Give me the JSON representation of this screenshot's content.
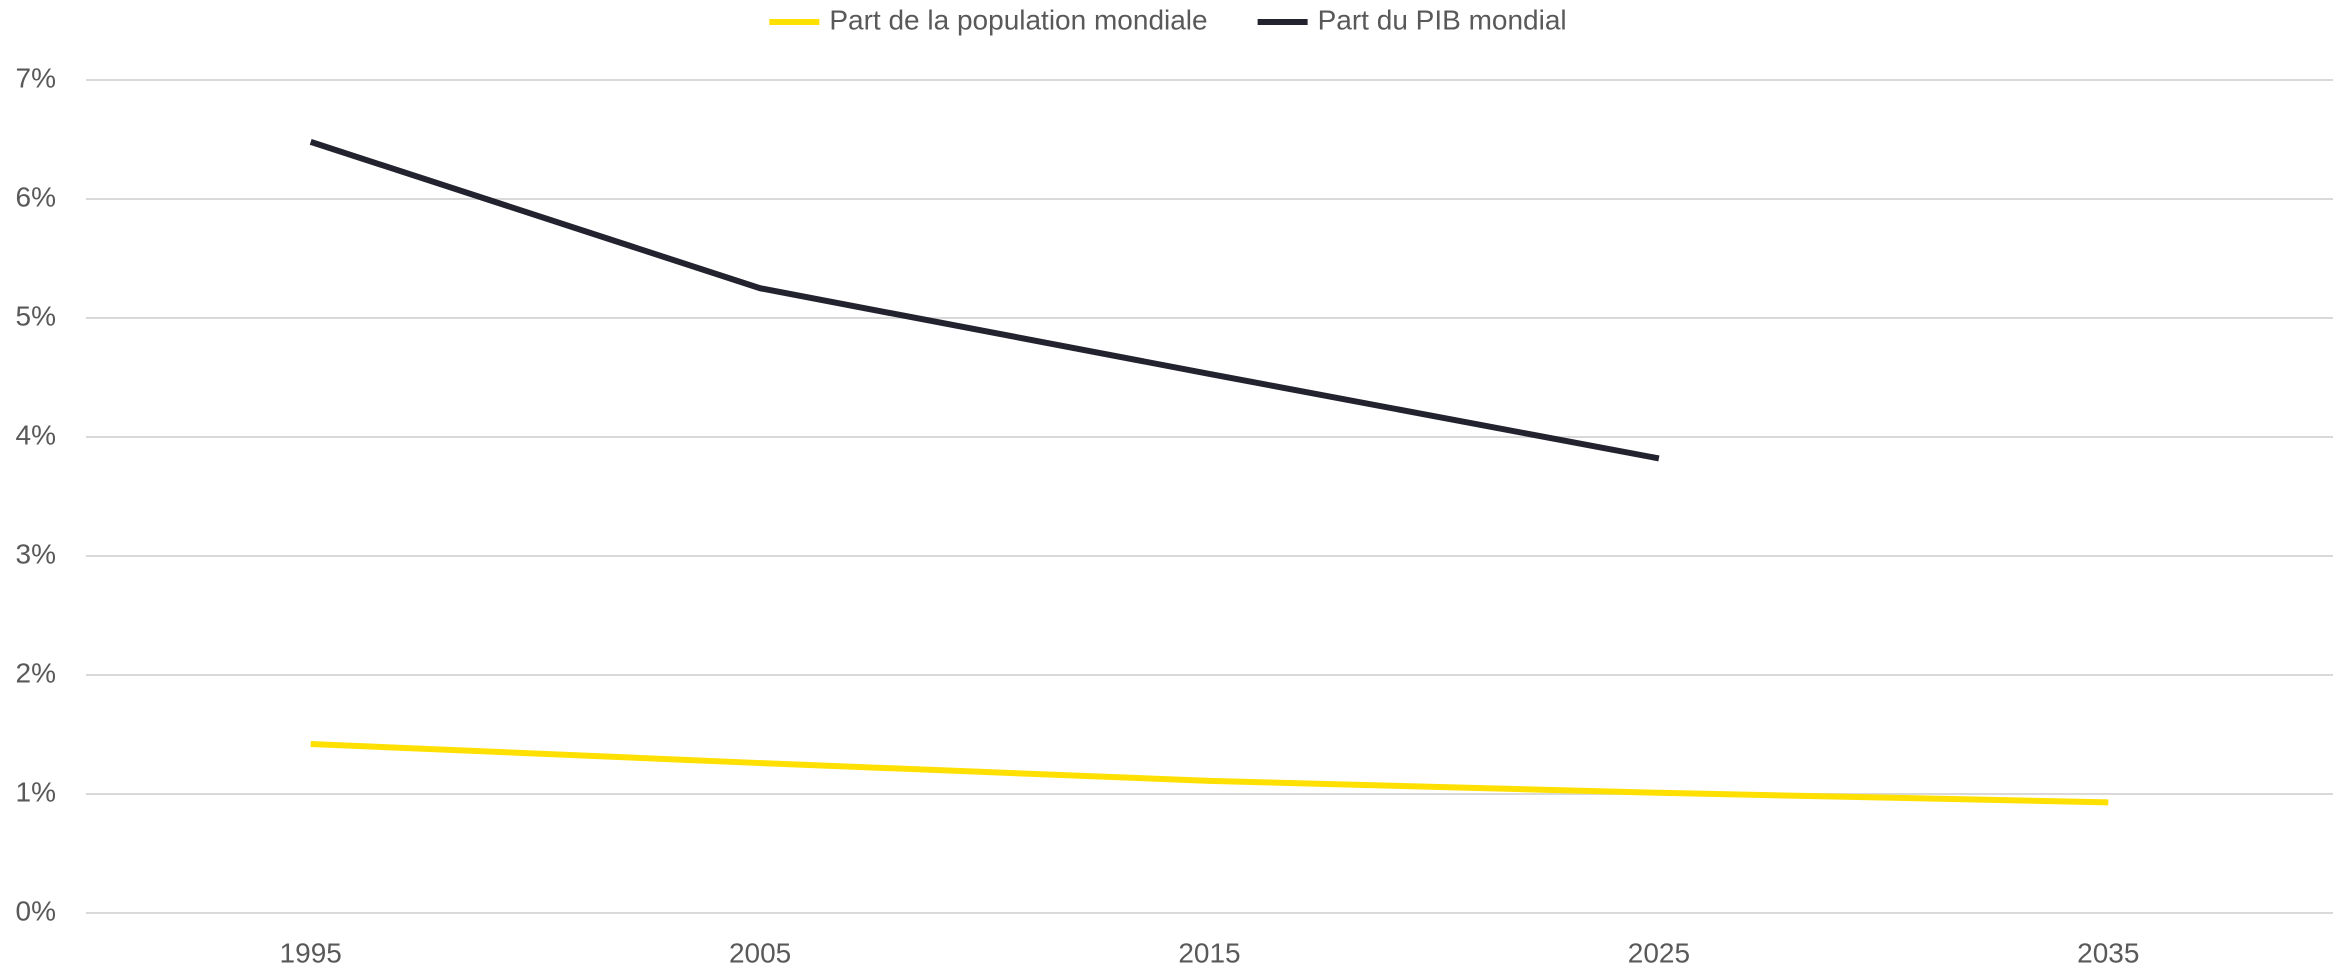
{
  "chart_data": {
    "type": "line",
    "categories": [
      "1995",
      "2005",
      "2015",
      "2025",
      "2035"
    ],
    "series": [
      {
        "name": "Part de la population mondiale",
        "color": "#ffe000",
        "values": [
          1.42,
          1.26,
          1.11,
          1.01,
          0.93
        ]
      },
      {
        "name": "Part du PIB mondial",
        "color": "#22232f",
        "values": [
          6.48,
          5.25,
          4.53,
          3.82,
          null
        ]
      }
    ],
    "ylim": [
      0,
      7
    ],
    "yticks": [
      {
        "value": 0,
        "label": "0%"
      },
      {
        "value": 1,
        "label": "1%"
      },
      {
        "value": 2,
        "label": "2%"
      },
      {
        "value": 3,
        "label": "3%"
      },
      {
        "value": 4,
        "label": "4%"
      },
      {
        "value": 5,
        "label": "5%"
      },
      {
        "value": 6,
        "label": "6%"
      },
      {
        "value": 7,
        "label": "7%"
      }
    ],
    "grid": true,
    "legend": "top"
  }
}
